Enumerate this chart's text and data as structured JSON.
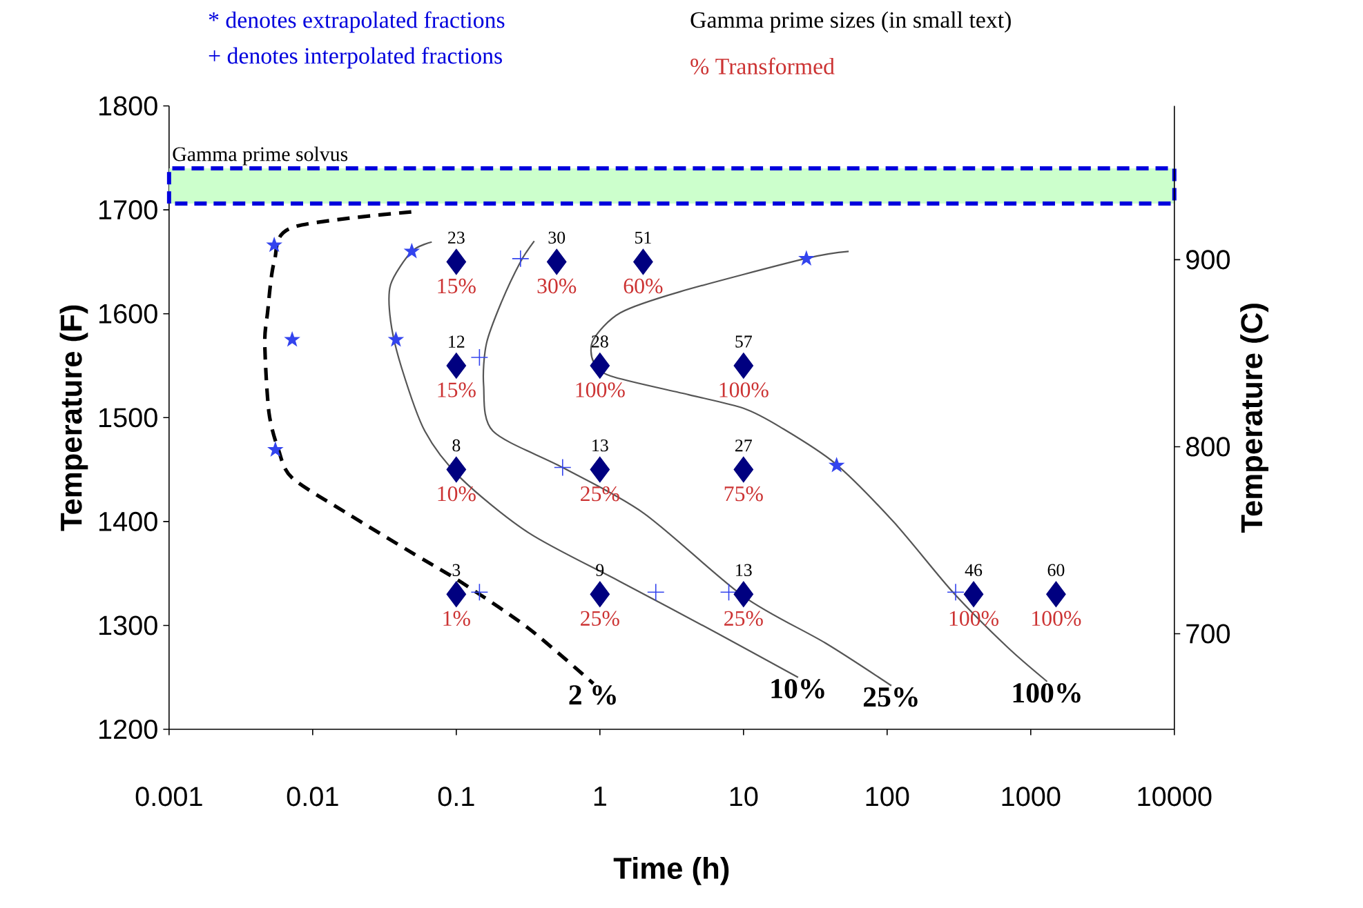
{
  "chart_data": {
    "type": "line",
    "xlabel": "Time (h)",
    "ylabel": "Temperature (F)",
    "y2label": "Temperature (C)",
    "log": "x",
    "xlim": [
      0.001,
      10000
    ],
    "xticks": [
      0.001,
      0.01,
      0.1,
      1,
      10,
      100,
      1000,
      10000
    ],
    "ylim": [
      1200,
      1800
    ],
    "yticks": [
      1200,
      1300,
      1400,
      1500,
      1600,
      1700,
      1800
    ],
    "y2lim": [
      648.9,
      982.2
    ],
    "y2ticks": [
      700,
      800,
      900
    ],
    "bands": [
      {
        "axis": "y",
        "from": 1706,
        "to": 1740,
        "label": "Gamma prime solvus",
        "color": "#ccffcc"
      }
    ],
    "series": [
      {
        "name": "2 %",
        "color": "#000000",
        "line_style": "dashed",
        "marker": "none",
        "x": [
          0.0486,
          0.0072,
          0.0054,
          0.00485,
          0.00464,
          0.00496,
          0.00578,
          0.0072,
          0.0173,
          0.0518,
          0.107,
          0.32,
          0.9
        ],
        "values": [
          1698,
          1683,
          1650,
          1601,
          1571,
          1505,
          1469,
          1442,
          1408,
          1368,
          1342,
          1297,
          1244
        ]
      },
      {
        "name": "10%",
        "color": "#555555",
        "line_style": "solid",
        "marker": "none",
        "x": [
          0.0675,
          0.049,
          0.0349,
          0.0349,
          0.0416,
          0.0604,
          0.107,
          0.32,
          1.39,
          6.46,
          24
        ],
        "values": [
          1669,
          1660,
          1628,
          1593,
          1548,
          1487,
          1442,
          1389,
          1342,
          1293,
          1250
        ]
      },
      {
        "name": "25%",
        "color": "#555555",
        "line_style": "solid",
        "marker": "none",
        "x": [
          0.349,
          0.28,
          0.206,
          0.162,
          0.155,
          0.18,
          0.55,
          2.02,
          10,
          37.2,
          107
        ],
        "values": [
          1670,
          1650,
          1611,
          1571,
          1531,
          1487,
          1452,
          1408,
          1328,
          1283,
          1242
        ]
      },
      {
        "name": "100%",
        "color": "#555555",
        "line_style": "solid",
        "marker": "none",
        "x": [
          54,
          26.8,
          3.57,
          1.39,
          0.9,
          0.9,
          1.19,
          4.16,
          10,
          18,
          43.4,
          112,
          287,
          689,
          1300
        ],
        "values": [
          1660,
          1653,
          1621,
          1601,
          1575,
          1554,
          1540,
          1522,
          1509,
          1491,
          1456,
          1399,
          1332,
          1279,
          1246
        ]
      },
      {
        "type": "scatter",
        "color": "#3344ee",
        "marker": "star",
        "x": [
          0.0054,
          0.0072,
          0.0055,
          0.049,
          0.038,
          27.4,
          44.5
        ],
        "values": [
          1666,
          1575,
          1469,
          1660,
          1575,
          1653,
          1454
        ]
      },
      {
        "type": "scatter",
        "color": "#3344ee",
        "marker": "cross",
        "x": [
          0.28,
          0.145,
          0.55,
          0.145,
          2.45,
          7.9,
          300
        ],
        "values": [
          1653,
          1558,
          1452,
          1332,
          1332,
          1332,
          1332
        ]
      },
      {
        "type": "scatter",
        "color": "#000080",
        "marker": "diamond",
        "x": [
          0.1,
          0.5,
          2,
          0.1,
          1,
          10,
          0.1,
          1,
          10,
          0.1,
          1,
          10,
          400,
          1500
        ],
        "values": [
          1650,
          1650,
          1650,
          1550,
          1550,
          1550,
          1450,
          1450,
          1450,
          1330,
          1330,
          1330,
          1330,
          1330
        ]
      }
    ],
    "annotations": [
      "* denotes extrapolated fractions",
      "+ denotes interpolated fractions",
      "Gamma prime sizes (in small text)",
      "% Transformed",
      {
        "text": "23",
        "x": 0.1,
        "y": 1650
      },
      {
        "text": "30",
        "x": 0.5,
        "y": 1650
      },
      {
        "text": "51",
        "x": 2,
        "y": 1650
      },
      {
        "text": "12",
        "x": 0.1,
        "y": 1550
      },
      {
        "text": "28",
        "x": 1,
        "y": 1550
      },
      {
        "text": "57",
        "x": 10,
        "y": 1550
      },
      {
        "text": "8",
        "x": 0.1,
        "y": 1450
      },
      {
        "text": "13",
        "x": 1,
        "y": 1450
      },
      {
        "text": "27",
        "x": 10,
        "y": 1450
      },
      {
        "text": "3",
        "x": 0.1,
        "y": 1330
      },
      {
        "text": "9",
        "x": 1,
        "y": 1330
      },
      {
        "text": "13",
        "x": 10,
        "y": 1330
      },
      {
        "text": "46",
        "x": 400,
        "y": 1330
      },
      {
        "text": "60",
        "x": 1500,
        "y": 1330
      },
      {
        "text": "15%",
        "x": 0.1,
        "y": 1650
      },
      {
        "text": "30%",
        "x": 0.5,
        "y": 1650
      },
      {
        "text": "60%",
        "x": 2,
        "y": 1650
      },
      {
        "text": "15%",
        "x": 0.1,
        "y": 1550
      },
      {
        "text": "100%",
        "x": 1,
        "y": 1550
      },
      {
        "text": "100%",
        "x": 10,
        "y": 1550
      },
      {
        "text": "10%",
        "x": 0.1,
        "y": 1450
      },
      {
        "text": "25%",
        "x": 1,
        "y": 1450
      },
      {
        "text": "75%",
        "x": 10,
        "y": 1450
      },
      {
        "text": "1%",
        "x": 0.1,
        "y": 1330
      },
      {
        "text": "25%",
        "x": 1,
        "y": 1330
      },
      {
        "text": "25%",
        "x": 10,
        "y": 1330
      },
      {
        "text": "100%",
        "x": 400,
        "y": 1330
      },
      {
        "text": "100%",
        "x": 1500,
        "y": 1330
      }
    ]
  }
}
